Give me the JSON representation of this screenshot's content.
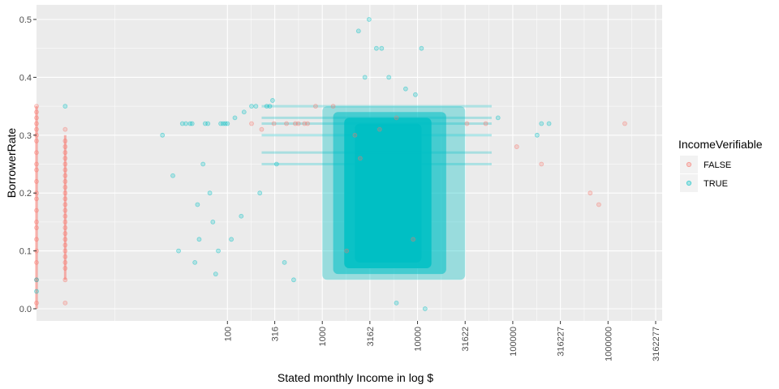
{
  "chart_data": {
    "type": "scatter",
    "title": "",
    "xlabel": "Stated monthly Income in log $",
    "ylabel": "BorrowerRate",
    "x_scale": "log10",
    "xlim": [
      0,
      3700000
    ],
    "ylim": [
      -0.02,
      0.52
    ],
    "x_ticks": [
      100,
      316,
      1000,
      3162,
      10000,
      31622,
      100000,
      316227,
      1000000,
      3162277
    ],
    "x_tick_labels": [
      "100",
      "316",
      "1000",
      "3162",
      "10000",
      "31622",
      "100000",
      "316227",
      "1000000",
      "3162277"
    ],
    "y_ticks": [
      0.0,
      0.1,
      0.2,
      0.3,
      0.4,
      0.5
    ],
    "y_tick_labels": [
      "0.0",
      "0.1",
      "0.2",
      "0.3",
      "0.4",
      "0.5"
    ],
    "grid": true,
    "legend": {
      "title": "IncomeVerifiable",
      "placement": "right",
      "entries": [
        "FALSE",
        "TRUE"
      ]
    },
    "colors": {
      "FALSE": "#F8766D",
      "TRUE": "#00BFC4",
      "panel": "#EBEBEB",
      "grid": "#FFFFFF"
    },
    "point_alpha": 0.15,
    "series": [
      {
        "name": "FALSE",
        "points": [
          [
            0,
            0.01
          ],
          [
            0,
            0.05
          ],
          [
            0,
            0.08
          ],
          [
            0,
            0.1
          ],
          [
            0,
            0.12
          ],
          [
            0,
            0.14
          ],
          [
            0,
            0.15
          ],
          [
            0,
            0.17
          ],
          [
            0,
            0.19
          ],
          [
            0,
            0.2
          ],
          [
            0,
            0.22
          ],
          [
            0,
            0.24
          ],
          [
            0,
            0.25
          ],
          [
            0,
            0.27
          ],
          [
            0,
            0.29
          ],
          [
            0,
            0.3
          ],
          [
            0,
            0.31
          ],
          [
            0,
            0.32
          ],
          [
            0,
            0.33
          ],
          [
            0,
            0.34
          ],
          [
            0,
            0.35
          ],
          [
            1,
            0.01
          ],
          [
            1,
            0.05
          ],
          [
            1,
            0.07
          ],
          [
            1,
            0.08
          ],
          [
            1,
            0.09
          ],
          [
            1,
            0.1
          ],
          [
            1,
            0.11
          ],
          [
            1,
            0.12
          ],
          [
            1,
            0.13
          ],
          [
            1,
            0.14
          ],
          [
            1,
            0.15
          ],
          [
            1,
            0.16
          ],
          [
            1,
            0.17
          ],
          [
            1,
            0.18
          ],
          [
            1,
            0.19
          ],
          [
            1,
            0.2
          ],
          [
            1,
            0.21
          ],
          [
            1,
            0.22
          ],
          [
            1,
            0.23
          ],
          [
            1,
            0.24
          ],
          [
            1,
            0.25
          ],
          [
            1,
            0.26
          ],
          [
            1,
            0.27
          ],
          [
            1,
            0.28
          ],
          [
            1,
            0.29
          ],
          [
            1,
            0.31
          ],
          [
            180,
            0.32
          ],
          [
            230,
            0.31
          ],
          [
            310,
            0.32
          ],
          [
            420,
            0.32
          ],
          [
            520,
            0.32
          ],
          [
            560,
            0.32
          ],
          [
            650,
            0.32
          ],
          [
            700,
            0.32
          ],
          [
            850,
            0.35
          ],
          [
            1300,
            0.35
          ],
          [
            33000,
            0.32
          ],
          [
            52000,
            0.32
          ],
          [
            110000,
            0.28
          ],
          [
            200000,
            0.25
          ],
          [
            1500000,
            0.32
          ],
          [
            800000,
            0.18
          ],
          [
            650000,
            0.2
          ],
          [
            2500,
            0.26
          ],
          [
            4000,
            0.31
          ],
          [
            6000,
            0.33
          ],
          [
            9000,
            0.12
          ],
          [
            1800,
            0.1
          ],
          [
            2200,
            0.3
          ]
        ]
      },
      {
        "name": "TRUE",
        "points": [
          [
            0,
            0.03
          ],
          [
            0,
            0.05
          ],
          [
            1,
            0.35
          ],
          [
            20,
            0.3
          ],
          [
            26,
            0.23
          ],
          [
            33,
            0.32
          ],
          [
            36,
            0.32
          ],
          [
            40,
            0.32
          ],
          [
            42,
            0.32
          ],
          [
            48,
            0.18
          ],
          [
            50,
            0.12
          ],
          [
            55,
            0.25
          ],
          [
            58,
            0.32
          ],
          [
            62,
            0.32
          ],
          [
            65,
            0.2
          ],
          [
            70,
            0.15
          ],
          [
            80,
            0.1
          ],
          [
            85,
            0.32
          ],
          [
            90,
            0.32
          ],
          [
            95,
            0.32
          ],
          [
            100,
            0.32
          ],
          [
            120,
            0.33
          ],
          [
            150,
            0.34
          ],
          [
            180,
            0.35
          ],
          [
            200,
            0.35
          ],
          [
            260,
            0.35
          ],
          [
            280,
            0.35
          ],
          [
            300,
            0.36
          ],
          [
            3100,
            0.5
          ],
          [
            2400,
            0.48
          ],
          [
            3700,
            0.45
          ],
          [
            4200,
            0.45
          ],
          [
            11000,
            0.45
          ],
          [
            2800,
            0.4
          ],
          [
            5000,
            0.4
          ],
          [
            7500,
            0.38
          ],
          [
            9500,
            0.37
          ],
          [
            70000,
            0.33
          ],
          [
            180000,
            0.3
          ],
          [
            200000,
            0.32
          ],
          [
            240000,
            0.32
          ],
          [
            12000,
            0.0
          ],
          [
            6000,
            0.01
          ],
          [
            30,
            0.1
          ],
          [
            45,
            0.08
          ],
          [
            75,
            0.06
          ],
          [
            110,
            0.12
          ],
          [
            140,
            0.16
          ],
          [
            220,
            0.2
          ],
          [
            330,
            0.25
          ],
          [
            400,
            0.08
          ],
          [
            500,
            0.05
          ]
        ]
      }
    ]
  }
}
